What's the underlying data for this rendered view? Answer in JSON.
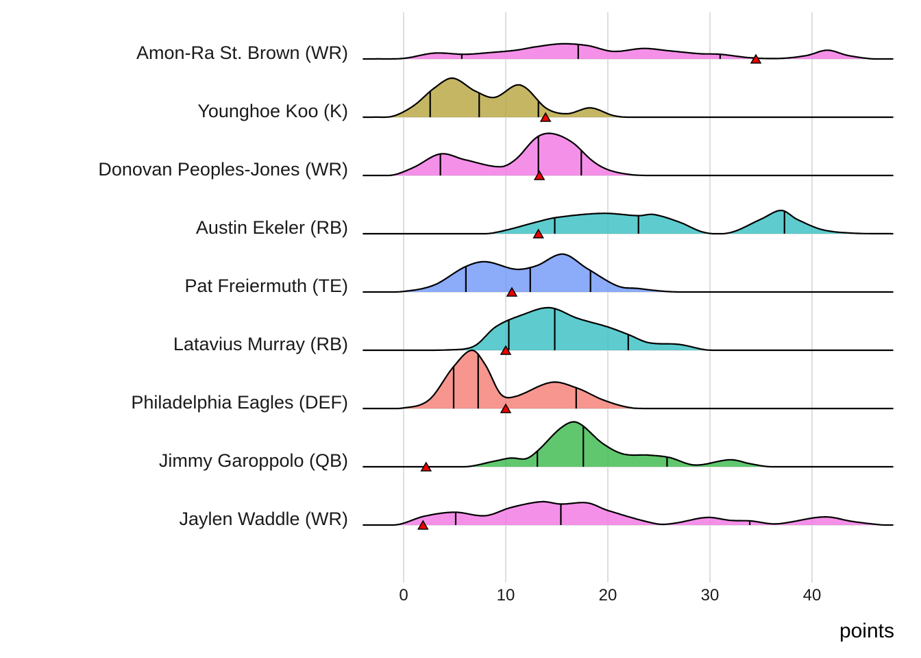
{
  "chart_data": {
    "type": "ridgeline",
    "title": "",
    "xlabel": "points",
    "ylabel": "",
    "xlim": [
      -4,
      48
    ],
    "x_ticks": [
      0,
      10,
      20,
      30,
      40
    ],
    "x_tick_labels": [
      "0",
      "10",
      "20",
      "30",
      "40"
    ],
    "grid": true,
    "legend": "none",
    "marker_description": "red triangle = projected points",
    "series": [
      {
        "name": "Amon-Ra St. Brown (WR)",
        "color": "#f374e3",
        "quantiles": [
          5.7,
          17.1,
          31.0
        ],
        "marker": 34.5,
        "density": [
          [
            -3,
            0
          ],
          [
            0,
            0.01
          ],
          [
            3,
            0.1
          ],
          [
            6,
            0.08
          ],
          [
            8.5,
            0.11
          ],
          [
            11,
            0.15
          ],
          [
            13,
            0.21
          ],
          [
            15.5,
            0.26
          ],
          [
            18,
            0.23
          ],
          [
            20.5,
            0.13
          ],
          [
            23.5,
            0.18
          ],
          [
            26,
            0.14
          ],
          [
            29,
            0.09
          ],
          [
            31,
            0.08
          ],
          [
            34,
            0.02
          ],
          [
            37,
            0.01
          ],
          [
            39.5,
            0.06
          ],
          [
            41.5,
            0.15
          ],
          [
            43.5,
            0.06
          ],
          [
            46,
            0
          ],
          [
            48,
            0
          ]
        ]
      },
      {
        "name": "Younghoe Koo (K)",
        "color": "#b7a43d",
        "quantiles": [
          2.6,
          7.4,
          13.2
        ],
        "marker": 13.9,
        "density": [
          [
            -3,
            0
          ],
          [
            -1,
            0.02
          ],
          [
            1,
            0.2
          ],
          [
            3,
            0.5
          ],
          [
            4.8,
            0.67
          ],
          [
            7,
            0.45
          ],
          [
            8.9,
            0.34
          ],
          [
            11,
            0.55
          ],
          [
            12,
            0.5
          ],
          [
            14,
            0.15
          ],
          [
            16,
            0.06
          ],
          [
            18.3,
            0.16
          ],
          [
            20.5,
            0.03
          ],
          [
            22,
            0
          ],
          [
            48,
            0
          ]
        ]
      },
      {
        "name": "Donovan Peoples-Jones (WR)",
        "color": "#f374e3",
        "quantiles": [
          3.6,
          13.2,
          17.4
        ],
        "marker": 13.3,
        "density": [
          [
            -3,
            0
          ],
          [
            -1,
            0.01
          ],
          [
            1,
            0.14
          ],
          [
            3.6,
            0.37
          ],
          [
            6,
            0.27
          ],
          [
            9.5,
            0.15
          ],
          [
            11,
            0.28
          ],
          [
            13,
            0.65
          ],
          [
            14.5,
            0.72
          ],
          [
            16.5,
            0.57
          ],
          [
            18.5,
            0.25
          ],
          [
            20,
            0.1
          ],
          [
            22,
            0.02
          ],
          [
            24,
            0
          ],
          [
            48,
            0
          ]
        ]
      },
      {
        "name": "Austin Ekeler (RB)",
        "color": "#36bfc2",
        "quantiles": [
          14.8,
          23.0,
          37.3
        ],
        "marker": 13.2,
        "density": [
          [
            -3,
            0
          ],
          [
            8,
            0
          ],
          [
            10,
            0.06
          ],
          [
            13,
            0.2
          ],
          [
            15,
            0.28
          ],
          [
            19.5,
            0.35
          ],
          [
            23,
            0.31
          ],
          [
            24.5,
            0.33
          ],
          [
            27,
            0.2
          ],
          [
            29.5,
            0.02
          ],
          [
            32,
            0.02
          ],
          [
            35,
            0.25
          ],
          [
            37,
            0.4
          ],
          [
            38.5,
            0.25
          ],
          [
            41,
            0.07
          ],
          [
            44,
            0.01
          ],
          [
            48,
            0
          ]
        ]
      },
      {
        "name": "Pat Freiermuth (TE)",
        "color": "#6f96f7",
        "quantiles": [
          6.1,
          12.4,
          18.3
        ],
        "marker": 10.6,
        "density": [
          [
            -3,
            0
          ],
          [
            0,
            0.01
          ],
          [
            3,
            0.12
          ],
          [
            6,
            0.43
          ],
          [
            8,
            0.52
          ],
          [
            11,
            0.39
          ],
          [
            13,
            0.45
          ],
          [
            15.6,
            0.65
          ],
          [
            18,
            0.4
          ],
          [
            21,
            0.1
          ],
          [
            23,
            0.06
          ],
          [
            25,
            0.02
          ],
          [
            27,
            0
          ],
          [
            48,
            0
          ]
        ]
      },
      {
        "name": "Latavius Murray (RB)",
        "color": "#36bfc2",
        "quantiles": [
          10.3,
          14.8,
          22.0
        ],
        "marker": 10.0,
        "density": [
          [
            -3,
            0
          ],
          [
            5,
            0.01
          ],
          [
            7,
            0.08
          ],
          [
            9,
            0.4
          ],
          [
            11.5,
            0.6
          ],
          [
            14.3,
            0.73
          ],
          [
            17,
            0.55
          ],
          [
            20,
            0.4
          ],
          [
            22,
            0.27
          ],
          [
            24,
            0.13
          ],
          [
            27,
            0.1
          ],
          [
            29.5,
            0.01
          ],
          [
            31,
            0
          ],
          [
            48,
            0
          ]
        ]
      },
      {
        "name": "Philadelphia Eagles (DEF)",
        "color": "#f47c73",
        "quantiles": [
          4.9,
          7.3,
          16.9
        ],
        "marker": 10.0,
        "density": [
          [
            -3,
            0
          ],
          [
            0,
            0.01
          ],
          [
            2.5,
            0.15
          ],
          [
            4.9,
            0.72
          ],
          [
            6.7,
            1.0
          ],
          [
            8,
            0.75
          ],
          [
            9.5,
            0.25
          ],
          [
            10.8,
            0.2
          ],
          [
            14.5,
            0.45
          ],
          [
            17,
            0.35
          ],
          [
            19.5,
            0.15
          ],
          [
            22,
            0.02
          ],
          [
            24,
            0
          ],
          [
            48,
            0
          ]
        ]
      },
      {
        "name": "Jimmy Garoppolo (QB)",
        "color": "#39b94a",
        "quantiles": [
          13.1,
          17.6,
          25.8
        ],
        "marker": 2.2,
        "density": [
          [
            -3,
            0
          ],
          [
            6,
            0
          ],
          [
            9,
            0.1
          ],
          [
            10.5,
            0.15
          ],
          [
            12,
            0.14
          ],
          [
            13.1,
            0.27
          ],
          [
            15.5,
            0.68
          ],
          [
            17,
            0.76
          ],
          [
            19.5,
            0.4
          ],
          [
            21.5,
            0.22
          ],
          [
            24,
            0.2
          ],
          [
            26,
            0.16
          ],
          [
            28.5,
            0.03
          ],
          [
            32,
            0.12
          ],
          [
            34,
            0.05
          ],
          [
            36,
            0
          ],
          [
            48,
            0
          ]
        ]
      },
      {
        "name": "Jaylen Waddle (WR)",
        "color": "#f374e3",
        "quantiles": [
          5.1,
          15.4,
          33.9
        ],
        "marker": 1.9,
        "density": [
          [
            -3,
            0
          ],
          [
            -0.5,
            0.01
          ],
          [
            2,
            0.15
          ],
          [
            5,
            0.22
          ],
          [
            8,
            0.16
          ],
          [
            10.5,
            0.3
          ],
          [
            13.5,
            0.4
          ],
          [
            15.4,
            0.36
          ],
          [
            18,
            0.38
          ],
          [
            20,
            0.25
          ],
          [
            24.8,
            0.02
          ],
          [
            26.5,
            0.03
          ],
          [
            29.7,
            0.13
          ],
          [
            32,
            0.08
          ],
          [
            34,
            0.07
          ],
          [
            36.5,
            0.02
          ],
          [
            41.2,
            0.14
          ],
          [
            44,
            0.06
          ],
          [
            47,
            0
          ],
          [
            48,
            0
          ]
        ]
      }
    ]
  }
}
